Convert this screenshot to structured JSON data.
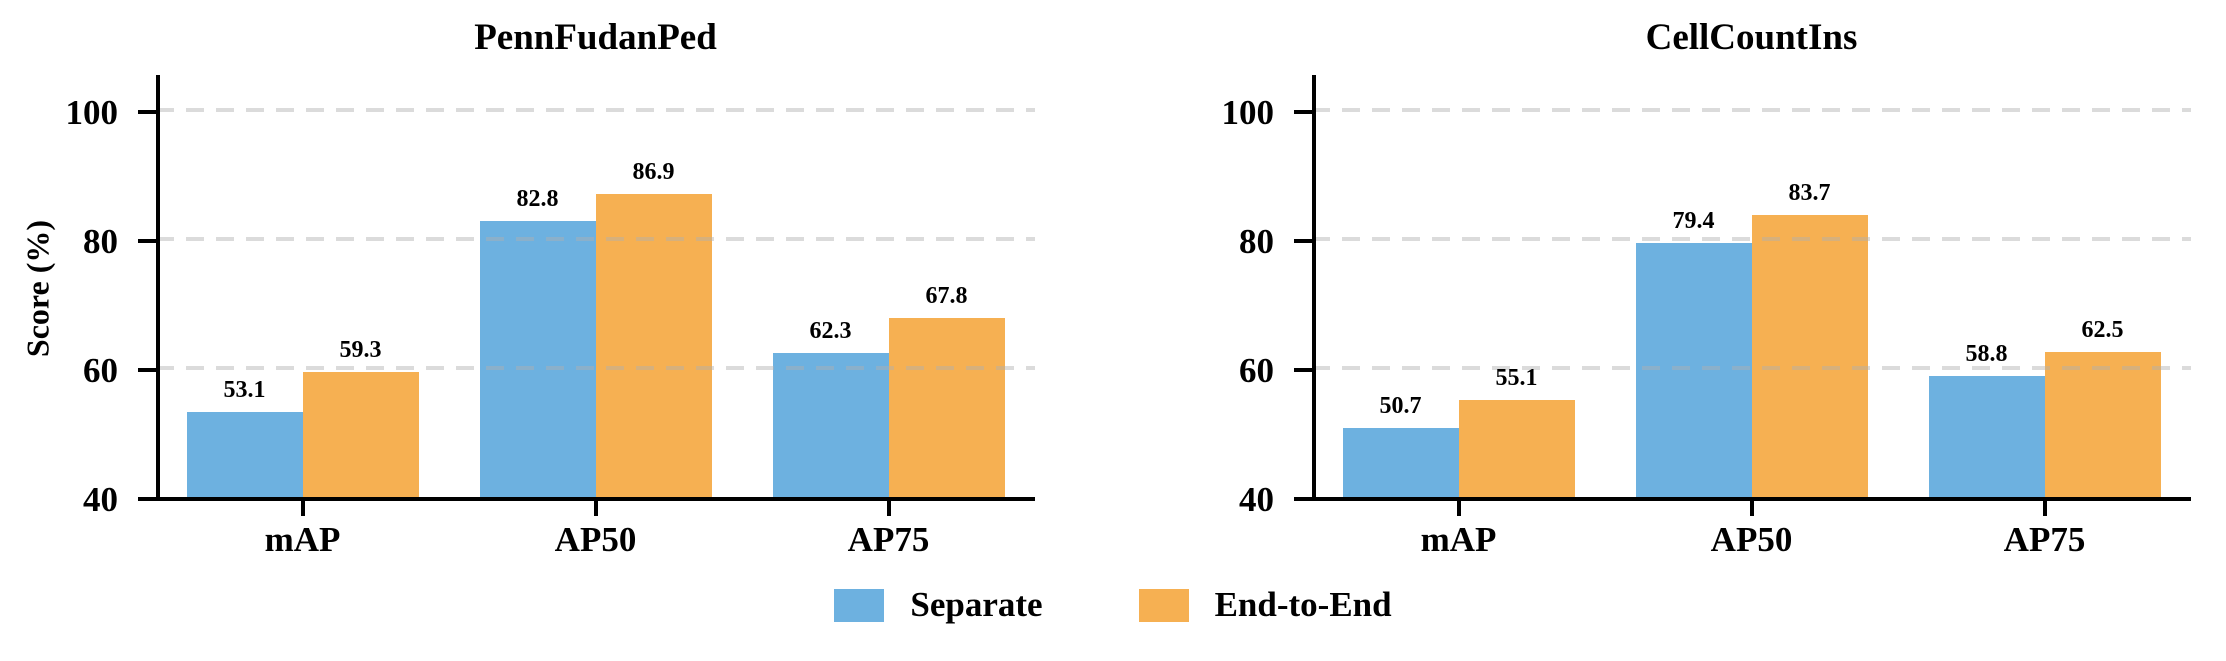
{
  "figure": {
    "ylabel": "Score (%)",
    "background": "#ffffff",
    "axis_color": "#000000",
    "gridline_color": "#dcdcdc",
    "legend_position": "bottom-center"
  },
  "chart_data": [
    {
      "type": "bar",
      "title": "PennFudanPed",
      "categories": [
        "mAP",
        "AP50",
        "AP75"
      ],
      "series": [
        {
          "name": "Separate",
          "color": "#6db1e0",
          "values": [
            53.1,
            82.8,
            62.3
          ]
        },
        {
          "name": "End-to-End",
          "color": "#f6b052",
          "values": [
            59.3,
            86.9,
            67.8
          ]
        }
      ],
      "value_labels": [
        [
          "53.1",
          "82.8",
          "62.3"
        ],
        [
          "59.3",
          "86.9",
          "67.8"
        ]
      ],
      "ylabel": "Score (%)",
      "yticks": [
        40,
        60,
        80,
        100
      ],
      "ylim": [
        40,
        105.4
      ],
      "grid": "dashed-horizontal",
      "legend": [
        "Separate",
        "End-to-End"
      ]
    },
    {
      "type": "bar",
      "title": "CellCountIns",
      "categories": [
        "mAP",
        "AP50",
        "AP75"
      ],
      "series": [
        {
          "name": "Separate",
          "color": "#6db1e0",
          "values": [
            50.7,
            79.4,
            58.8
          ]
        },
        {
          "name": "End-to-End",
          "color": "#f6b052",
          "values": [
            55.1,
            83.7,
            62.5
          ]
        }
      ],
      "value_labels": [
        [
          "50.7",
          "79.4",
          "58.8"
        ],
        [
          "55.1",
          "83.7",
          "62.5"
        ]
      ],
      "ylabel": "",
      "yticks": [
        40,
        60,
        80,
        100
      ],
      "ylim": [
        40,
        105.4
      ],
      "grid": "dashed-horizontal",
      "legend": [
        "Separate",
        "End-to-End"
      ]
    }
  ]
}
